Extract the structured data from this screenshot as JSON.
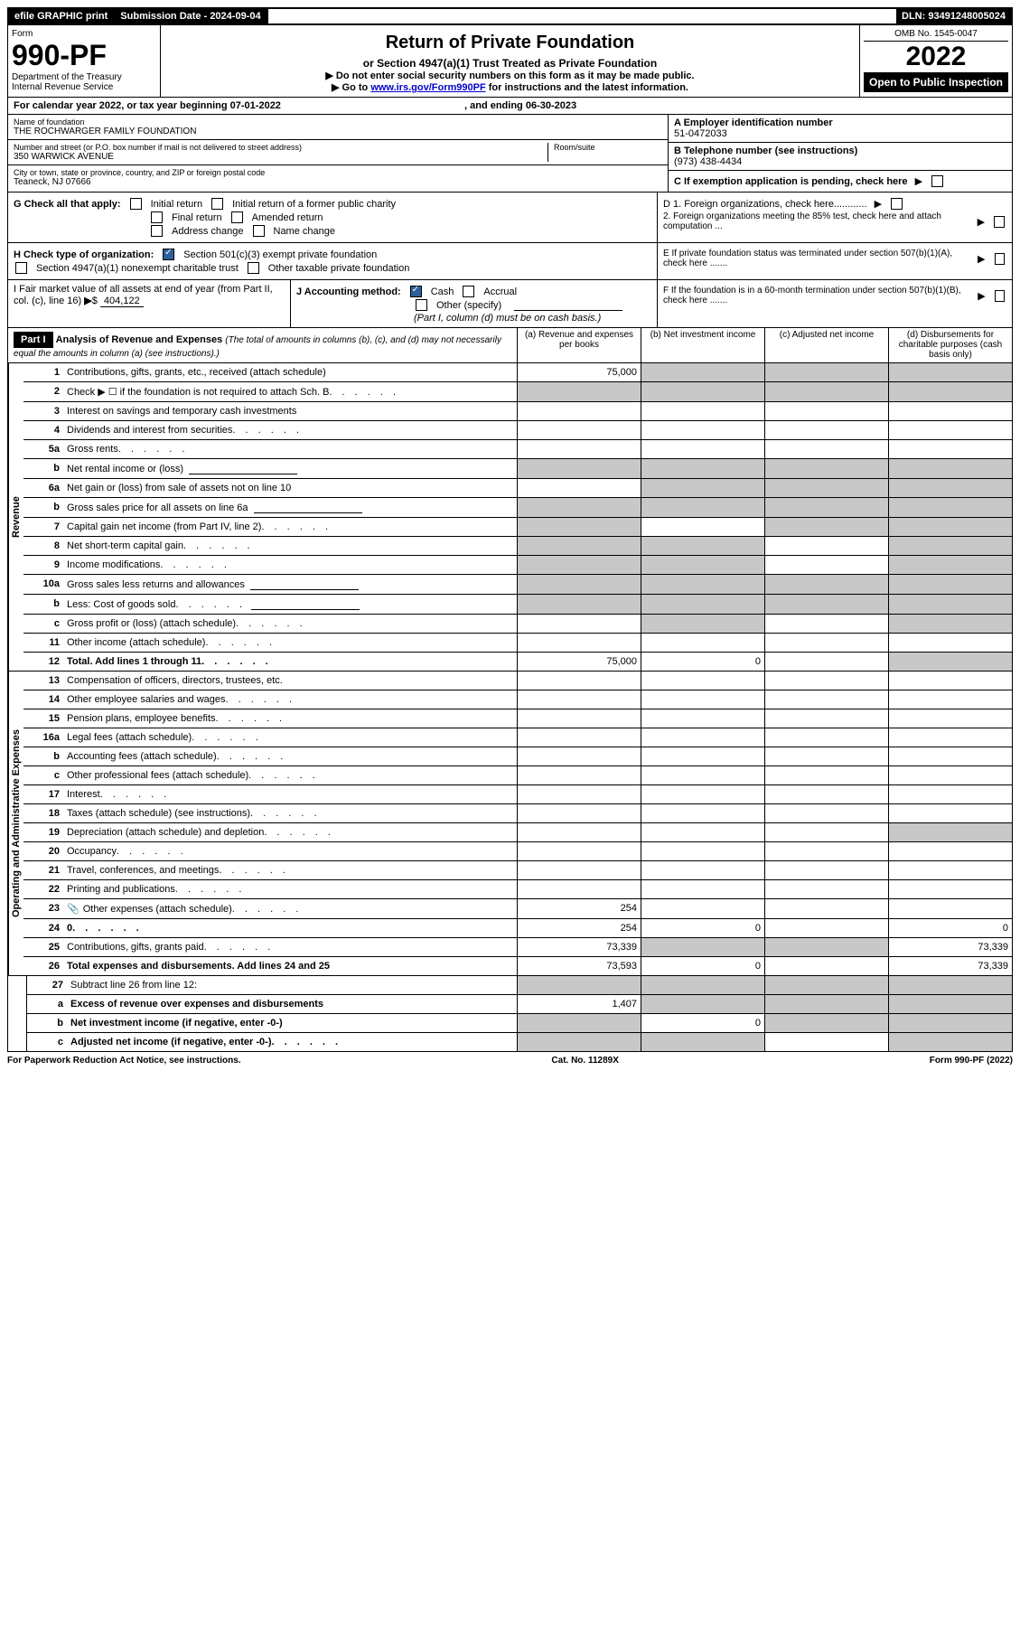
{
  "colors": {
    "black": "#000000",
    "white": "#ffffff",
    "link": "#0000cc",
    "checkbox": "#2e5f9b",
    "grey_cell": "#c8c8c8"
  },
  "topbar": {
    "efile": "efile GRAPHIC print",
    "sub_label": "Submission Date - 2024-09-04",
    "dln": "DLN: 93491248005024"
  },
  "header": {
    "form_label": "Form",
    "form_no": "990-PF",
    "dept1": "Department of the Treasury",
    "dept2": "Internal Revenue Service",
    "title": "Return of Private Foundation",
    "subtitle": "or Section 4947(a)(1) Trust Treated as Private Foundation",
    "bullet1": "▶ Do not enter social security numbers on this form as it may be made public.",
    "bullet2_pre": "▶ Go to ",
    "bullet2_link": "www.irs.gov/Form990PF",
    "bullet2_post": " for instructions and the latest information.",
    "omb": "OMB No. 1545-0047",
    "year": "2022",
    "open": "Open to Public Inspection"
  },
  "cal": {
    "text_pre": "For calendar year 2022, or tax year beginning ",
    "begin": "07-01-2022",
    "text_mid": " , and ending ",
    "end": "06-30-2023"
  },
  "info": {
    "name_label": "Name of foundation",
    "name": "THE ROCHWARGER FAMILY FOUNDATION",
    "addr_label": "Number and street (or P.O. box number if mail is not delivered to street address)",
    "addr": "350 WARWICK AVENUE",
    "room_label": "Room/suite",
    "city_label": "City or town, state or province, country, and ZIP or foreign postal code",
    "city": "Teaneck, NJ  07666",
    "a_label": "A Employer identification number",
    "a_value": "51-0472033",
    "b_label": "B Telephone number (see instructions)",
    "b_value": "(973) 438-4434",
    "c_label": "C If exemption application is pending, check here"
  },
  "g": {
    "label": "G Check all that apply:",
    "o1": "Initial return",
    "o2": "Initial return of a former public charity",
    "o3": "Final return",
    "o4": "Amended return",
    "o5": "Address change",
    "o6": "Name change"
  },
  "d": {
    "d1": "D 1. Foreign organizations, check here............",
    "d2": "2. Foreign organizations meeting the 85% test, check here and attach computation ..."
  },
  "h": {
    "label": "H Check type of organization:",
    "o1": "Section 501(c)(3) exempt private foundation",
    "o2": "Section 4947(a)(1) nonexempt charitable trust",
    "o3": "Other taxable private foundation"
  },
  "e": {
    "text": "E  If private foundation status was terminated under section 507(b)(1)(A), check here ......."
  },
  "i": {
    "label": "I Fair market value of all assets at end of year (from Part II, col. (c), line 16)",
    "value": "404,122"
  },
  "j": {
    "label": "J Accounting method:",
    "cash": "Cash",
    "accrual": "Accrual",
    "other": "Other (specify)",
    "note": "(Part I, column (d) must be on cash basis.)"
  },
  "f": {
    "text": "F  If the foundation is in a 60-month termination under section 507(b)(1)(B), check here ......."
  },
  "part1": {
    "label": "Part I",
    "title": "Analysis of Revenue and Expenses",
    "note": "(The total of amounts in columns (b), (c), and (d) may not necessarily equal the amounts in column (a) (see instructions).)",
    "col_a": "(a) Revenue and expenses per books",
    "col_b": "(b) Net investment income",
    "col_c": "(c) Adjusted net income",
    "col_d": "(d) Disbursements for charitable purposes (cash basis only)"
  },
  "sections": {
    "revenue": "Revenue",
    "expenses": "Operating and Administrative Expenses"
  },
  "rows": [
    {
      "n": "1",
      "d": "Contributions, gifts, grants, etc., received (attach schedule)",
      "a": "75,000",
      "grey_bcd": true
    },
    {
      "n": "2",
      "d": "Check ▶ ☐ if the foundation is not required to attach Sch. B",
      "dots": true,
      "grey_all": true
    },
    {
      "n": "3",
      "d": "Interest on savings and temporary cash investments"
    },
    {
      "n": "4",
      "d": "Dividends and interest from securities",
      "dots": true
    },
    {
      "n": "5a",
      "d": "Gross rents",
      "dots": true
    },
    {
      "n": "b",
      "d": "Net rental income or (loss)",
      "input": true,
      "grey_all": true
    },
    {
      "n": "6a",
      "d": "Net gain or (loss) from sale of assets not on line 10",
      "grey_bcd": true
    },
    {
      "n": "b",
      "d": "Gross sales price for all assets on line 6a",
      "input": true,
      "grey_all": true
    },
    {
      "n": "7",
      "d": "Capital gain net income (from Part IV, line 2)",
      "dots": true,
      "grey_acd": true
    },
    {
      "n": "8",
      "d": "Net short-term capital gain",
      "dots": true,
      "grey_abd": true
    },
    {
      "n": "9",
      "d": "Income modifications",
      "dots": true,
      "grey_abd": true
    },
    {
      "n": "10a",
      "d": "Gross sales less returns and allowances",
      "input": true,
      "grey_all": true
    },
    {
      "n": "b",
      "d": "Less: Cost of goods sold",
      "dots": true,
      "input": true,
      "grey_all": true
    },
    {
      "n": "c",
      "d": "Gross profit or (loss) (attach schedule)",
      "dots": true,
      "grey_bd": true
    },
    {
      "n": "11",
      "d": "Other income (attach schedule)",
      "dots": true
    },
    {
      "n": "12",
      "d": "Total. Add lines 1 through 11",
      "dots": true,
      "bold": true,
      "a": "75,000",
      "b": "0",
      "grey_d": true
    }
  ],
  "exp_rows": [
    {
      "n": "13",
      "d": "Compensation of officers, directors, trustees, etc."
    },
    {
      "n": "14",
      "d": "Other employee salaries and wages",
      "dots": true
    },
    {
      "n": "15",
      "d": "Pension plans, employee benefits",
      "dots": true
    },
    {
      "n": "16a",
      "d": "Legal fees (attach schedule)",
      "dots": true
    },
    {
      "n": "b",
      "d": "Accounting fees (attach schedule)",
      "dots": true
    },
    {
      "n": "c",
      "d": "Other professional fees (attach schedule)",
      "dots": true
    },
    {
      "n": "17",
      "d": "Interest",
      "dots": true
    },
    {
      "n": "18",
      "d": "Taxes (attach schedule) (see instructions)",
      "dots": true
    },
    {
      "n": "19",
      "d": "Depreciation (attach schedule) and depletion",
      "dots": true,
      "grey_d": true
    },
    {
      "n": "20",
      "d": "Occupancy",
      "dots": true
    },
    {
      "n": "21",
      "d": "Travel, conferences, and meetings",
      "dots": true
    },
    {
      "n": "22",
      "d": "Printing and publications",
      "dots": true
    },
    {
      "n": "23",
      "d": "Other expenses (attach schedule)",
      "dots": true,
      "icon": "📎",
      "a": "254"
    },
    {
      "n": "24",
      "d": "0",
      "dots": true,
      "bold": true,
      "a": "254",
      "b": "0"
    },
    {
      "n": "25",
      "d": "Contributions, gifts, grants paid",
      "dots": true,
      "a": "73,339",
      "grey_bc": true,
      "dval": "73,339"
    },
    {
      "n": "26",
      "d": "Total expenses and disbursements. Add lines 24 and 25",
      "bold": true,
      "a": "73,593",
      "b": "0",
      "dval": "73,339"
    }
  ],
  "bottom_rows": [
    {
      "n": "27",
      "d": "Subtract line 26 from line 12:",
      "grey_all": true
    },
    {
      "n": "a",
      "d": "Excess of revenue over expenses and disbursements",
      "bold": true,
      "a": "1,407",
      "grey_bcd": true
    },
    {
      "n": "b",
      "d": "Net investment income (if negative, enter -0-)",
      "bold": true,
      "grey_a": true,
      "b": "0",
      "grey_cd": true
    },
    {
      "n": "c",
      "d": "Adjusted net income (if negative, enter -0-)",
      "bold": true,
      "dots": true,
      "grey_ab": true,
      "grey_d": true
    }
  ],
  "footer": {
    "left": "For Paperwork Reduction Act Notice, see instructions.",
    "mid": "Cat. No. 11289X",
    "right": "Form 990-PF (2022)"
  }
}
